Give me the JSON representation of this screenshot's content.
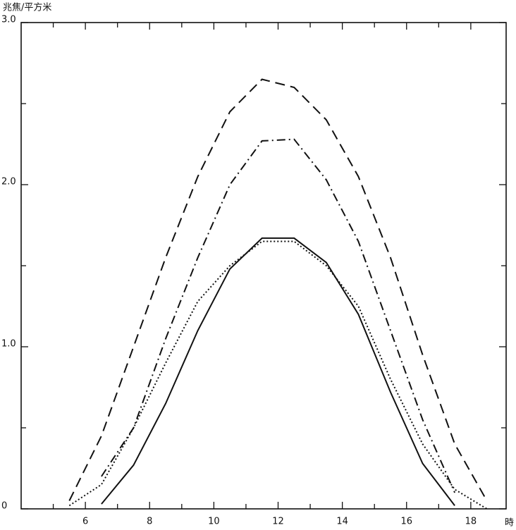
{
  "chart_data": {
    "type": "line",
    "ylabel": "兆焦/平方米",
    "xlabel": "時",
    "xlim": [
      4,
      19.1
    ],
    "ylim": [
      0,
      3
    ],
    "xticks": [
      6,
      8,
      10,
      12,
      14,
      16,
      18
    ],
    "xminor": [
      5,
      7,
      9,
      11,
      13,
      15,
      17
    ],
    "yticks": [
      0,
      {
        "value": 1,
        "label": "1.0"
      },
      {
        "value": 2,
        "label": "2.0"
      },
      {
        "value": 3,
        "label": "3.0"
      }
    ],
    "yminor": [
      0.5,
      1.5,
      2.5
    ],
    "series": [
      {
        "color": "#111",
        "dash": "14,8",
        "x": [
          5.5,
          6.5,
          7.5,
          8.5,
          9.5,
          10.5,
          11.5,
          12.5,
          13.5,
          14.5,
          15.5,
          16.5,
          17.5,
          18.5
        ],
        "values": [
          0.05,
          0.45,
          1.0,
          1.55,
          2.05,
          2.45,
          2.65,
          2.6,
          2.4,
          2.05,
          1.55,
          0.95,
          0.4,
          0.05
        ]
      },
      {
        "color": "#111",
        "dash": "12,5,2,5",
        "x": [
          6.5,
          7.5,
          8.5,
          9.5,
          10.5,
          11.5,
          12.5,
          13.5,
          14.5,
          15.5,
          16.5,
          17.5
        ],
        "values": [
          0.2,
          0.5,
          1.05,
          1.55,
          2.0,
          2.27,
          2.28,
          2.03,
          1.65,
          1.1,
          0.55,
          0.1
        ]
      },
      {
        "color": "#111",
        "dash": "",
        "x": [
          6.5,
          7.5,
          8.5,
          9.5,
          10.5,
          11.5,
          12.5,
          13.5,
          14.5,
          15.5,
          16.5,
          17.5
        ],
        "values": [
          0.03,
          0.27,
          0.65,
          1.1,
          1.48,
          1.67,
          1.67,
          1.52,
          1.2,
          0.72,
          0.28,
          0.02
        ]
      },
      {
        "color": "#111",
        "dash": "2,3",
        "x": [
          5.5,
          6.5,
          7.5,
          8.5,
          9.5,
          10.5,
          11.5,
          12.5,
          13.5,
          14.5,
          15.5,
          16.5,
          17.5,
          18.5
        ],
        "values": [
          0.02,
          0.15,
          0.5,
          0.9,
          1.28,
          1.5,
          1.65,
          1.65,
          1.5,
          1.25,
          0.8,
          0.4,
          0.12,
          0.0
        ]
      }
    ]
  }
}
